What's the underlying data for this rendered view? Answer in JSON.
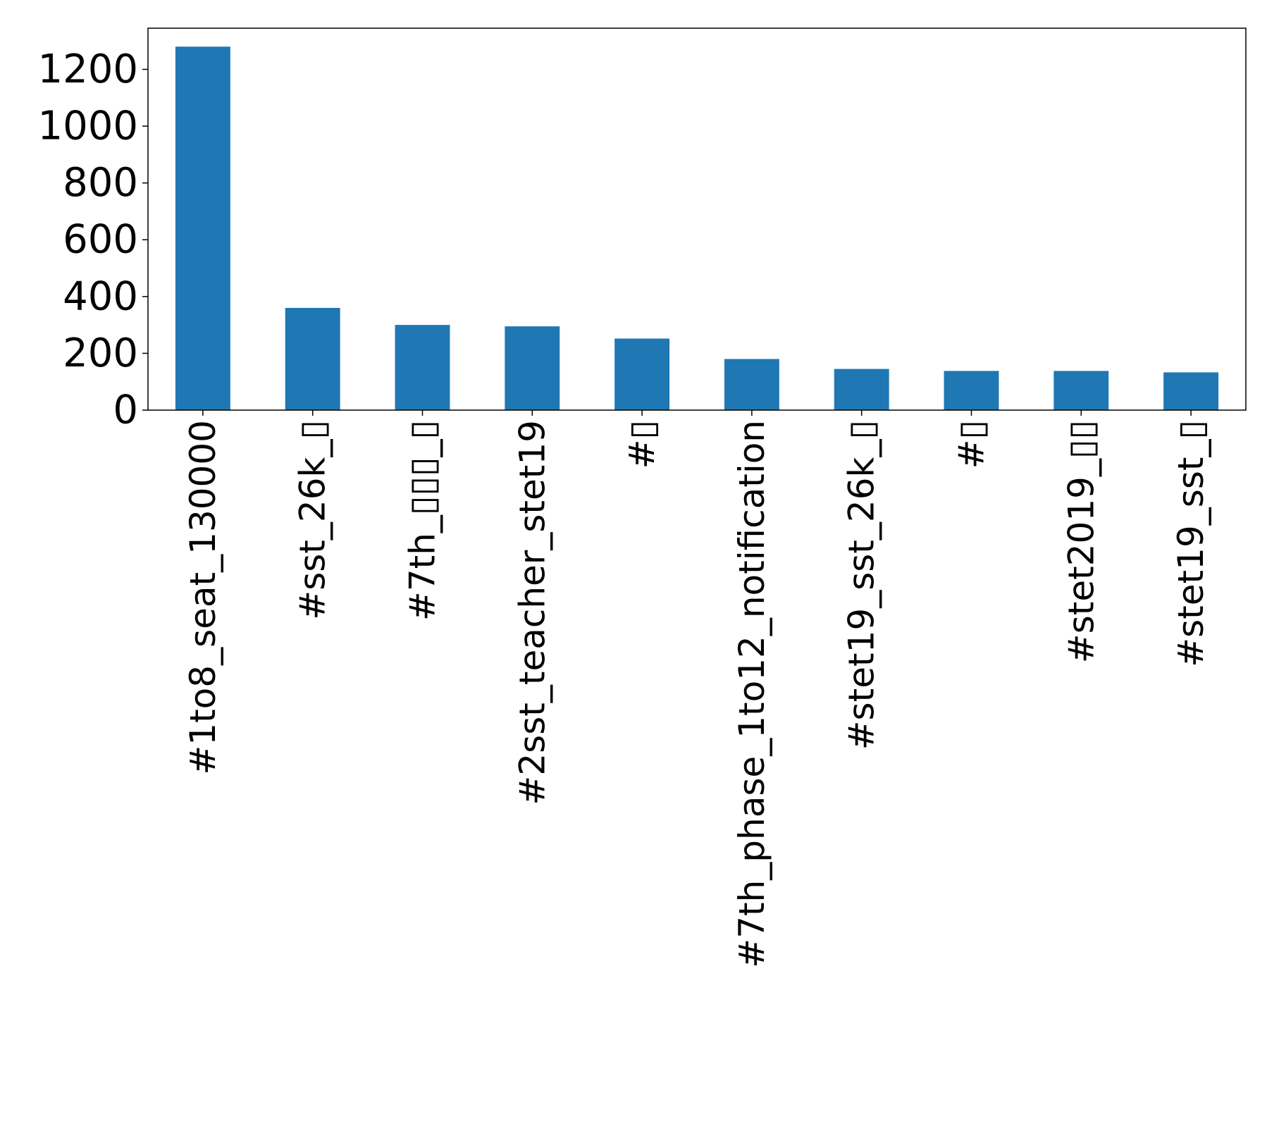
{
  "chart_data": {
    "type": "bar",
    "categories": [
      "#1to8_seat_130000",
      "#sst_26k_▯",
      "#7th_▯▯▯_▯",
      "#2sst_teacher_stet19",
      "#▯",
      "#7th_phase_1to12_notification",
      "#stet19_sst_26k_▯",
      "#▯",
      "#stet2019_▯▯",
      "#stet19_sst_▯"
    ],
    "values": [
      1280,
      360,
      300,
      295,
      252,
      180,
      145,
      138,
      138,
      133
    ],
    "yticks": [
      "0",
      "200",
      "400",
      "600",
      "800",
      "1000",
      "1200"
    ],
    "ylim": [
      0,
      1345
    ],
    "title": "",
    "xlabel": "",
    "ylabel": "",
    "grid": false,
    "legend": "none",
    "bar_color": "#1f77b4"
  }
}
